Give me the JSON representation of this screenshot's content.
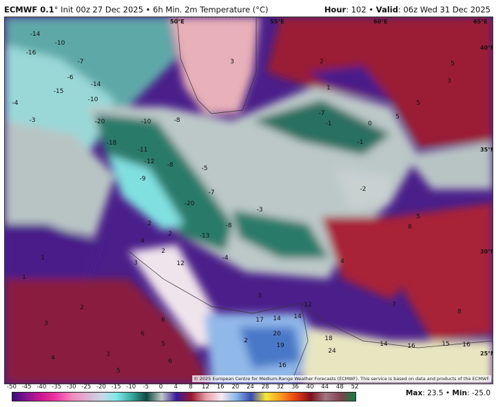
{
  "header": {
    "model": "ECMWF 0.1",
    "init": "° Init 00z 27 Dec 2025",
    "sep": " • ",
    "field": "6h Min. 2m Temperature (°C)",
    "hour_label": "Hour",
    "hour": ": 102",
    "valid_label": "Valid",
    "valid": ": 06z Wed 31 Dec 2025"
  },
  "map": {
    "graticule": [
      "50°E",
      "55°E",
      "60°E",
      "65°E",
      "40°N",
      "35°N",
      "30°N",
      "25°N"
    ],
    "values": [
      "-14",
      "-16",
      "-10",
      "-7",
      "-15",
      "-6",
      "-14",
      "-10",
      "-20",
      "-18",
      "-11",
      "-12",
      "-8",
      "-9",
      "-10",
      "-3",
      "-4",
      "-8",
      "-5",
      "-7",
      "-20",
      "-13",
      "-8",
      "-4",
      "-3",
      "-7",
      "-1",
      "-2",
      "0",
      "-1",
      "1",
      "2",
      "2",
      "4",
      "1",
      "2",
      "3",
      "2",
      "4",
      "3",
      "5",
      "5",
      "5",
      "3",
      "5",
      "8",
      "6",
      "7",
      "8",
      "12",
      "12",
      "16",
      "17",
      "14",
      "14",
      "20",
      "19",
      "18",
      "24",
      "14",
      "16",
      "15",
      "16",
      "2",
      "3",
      "6",
      "5",
      "3",
      "5",
      "4",
      "6",
      "3",
      "2",
      "1",
      "1"
    ],
    "credit": "© 2025 European Centre for Medium-Range Weather Forecasts (ECMWF). This service is based on data and products of the ECMWF."
  },
  "colorbar": {
    "ticks": [
      "-50",
      "-45",
      "-40",
      "-35",
      "-30",
      "-25",
      "-20",
      "-15",
      "-10",
      "-5",
      "0",
      "4",
      "8",
      "12",
      "16",
      "20",
      "24",
      "28",
      "32",
      "36",
      "40",
      "44",
      "48",
      "52"
    ],
    "colors": [
      "#3a0a78",
      "#8a1490",
      "#d21790",
      "#f03aa6",
      "#f08ac0",
      "#e0b0d0",
      "#c8d8e8",
      "#80e8e8",
      "#3aa8a0",
      "#0f4a40",
      "#c0c8c8",
      "#3a1a9a",
      "#9a1830",
      "#e8a0a8",
      "#f8e8f0",
      "#8ab8e8",
      "#3a4ab0",
      "#f8e838",
      "#f89820",
      "#e84010",
      "#801020",
      "#a07880",
      "#804050",
      "#108040"
    ]
  },
  "stats": {
    "max_label": "Max",
    "max": ": 23.5",
    "sep": " • ",
    "min_label": "Min",
    "min": ": -25.0"
  }
}
